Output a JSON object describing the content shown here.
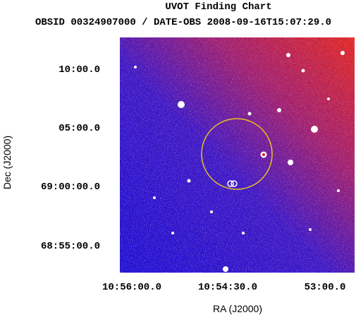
{
  "title": "UVOT Finding Chart",
  "subtitle": "OBSID 00324907000 / DATE-OBS 2008-09-16T15:07:29.0",
  "x_axis": {
    "label": "RA (J2000)",
    "ticks": [
      "10:56:00.0",
      "10:54:30.0",
      "53:00.0"
    ]
  },
  "y_axis": {
    "label": "Dec (J2000)",
    "ticks": [
      "10:00.0",
      "05:00.0",
      "69:00:00.0",
      "68:55:00.0"
    ]
  }
}
